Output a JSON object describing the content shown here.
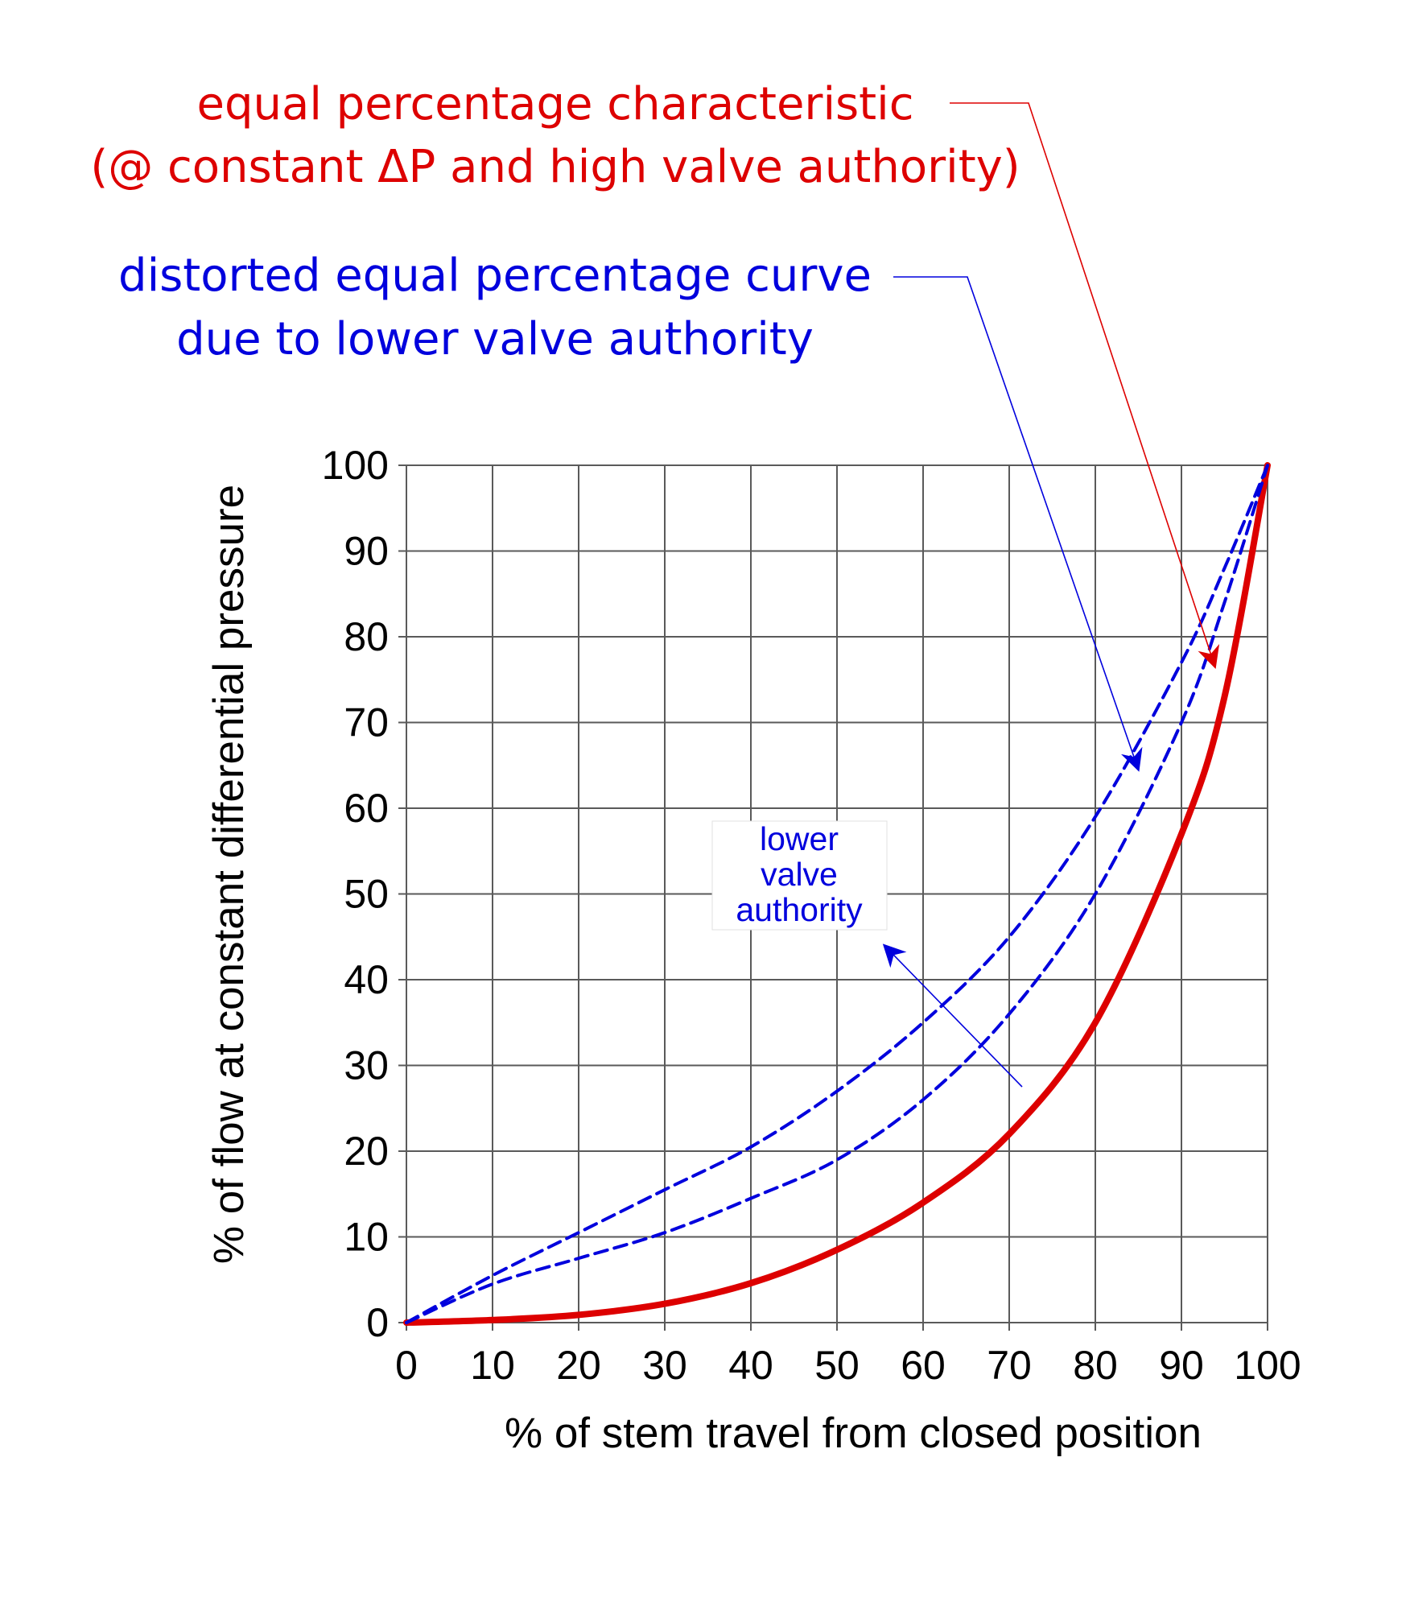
{
  "chart_data": {
    "type": "line",
    "xlabel": "% of stem  travel from closed position",
    "ylabel": "% of flow at constant differential pressure",
    "xlim": [
      0,
      100
    ],
    "ylim": [
      0,
      100
    ],
    "x_ticks": [
      "0",
      "10",
      "20",
      "30",
      "40",
      "50",
      "60",
      "70",
      "80",
      "90",
      "100"
    ],
    "y_ticks": [
      "0",
      "10",
      "20",
      "30",
      "40",
      "50",
      "60",
      "70",
      "80",
      "90",
      "100"
    ],
    "grid": true,
    "series": [
      {
        "style": "solid",
        "color": "#dd0000",
        "x": [
          0,
          10,
          20,
          30,
          40,
          50,
          60,
          70,
          80,
          90,
          95,
          100
        ],
        "y": [
          0,
          0.3,
          0.9,
          2.2,
          4.6,
          8.5,
          14,
          22,
          35,
          57,
          73,
          100
        ]
      },
      {
        "style": "dashed",
        "color": "#0000dd",
        "x": [
          0,
          10,
          20,
          30,
          40,
          50,
          60,
          70,
          80,
          90,
          95,
          100
        ],
        "y": [
          0,
          5.5,
          10.5,
          15.5,
          20.5,
          27,
          35,
          45,
          59,
          77,
          88,
          100
        ]
      },
      {
        "style": "dashed",
        "color": "#0000dd",
        "x": [
          0,
          10,
          20,
          30,
          40,
          50,
          60,
          70,
          80,
          90,
          95,
          100
        ],
        "y": [
          0,
          4.5,
          7.5,
          10.5,
          14.5,
          19,
          26,
          36,
          50,
          70,
          84,
          100
        ]
      }
    ],
    "annotations": [
      {
        "lines": [
          "equal percentage characteristic",
          "(@ constant ΔP and high valve authority)"
        ],
        "color": "#dd0000",
        "points_to": [
          93.9,
          76.5
        ]
      },
      {
        "lines": [
          "distorted equal percentage curve",
          "due to lower valve authority"
        ],
        "color": "#0000dd",
        "points_to": [
          85,
          64.5
        ]
      },
      {
        "lines": [
          "lower",
          "valve",
          "authority"
        ],
        "color": "#0000dd",
        "arrow_from": [
          71.5,
          27.5
        ],
        "points_to": [
          55.5,
          44
        ]
      }
    ]
  }
}
